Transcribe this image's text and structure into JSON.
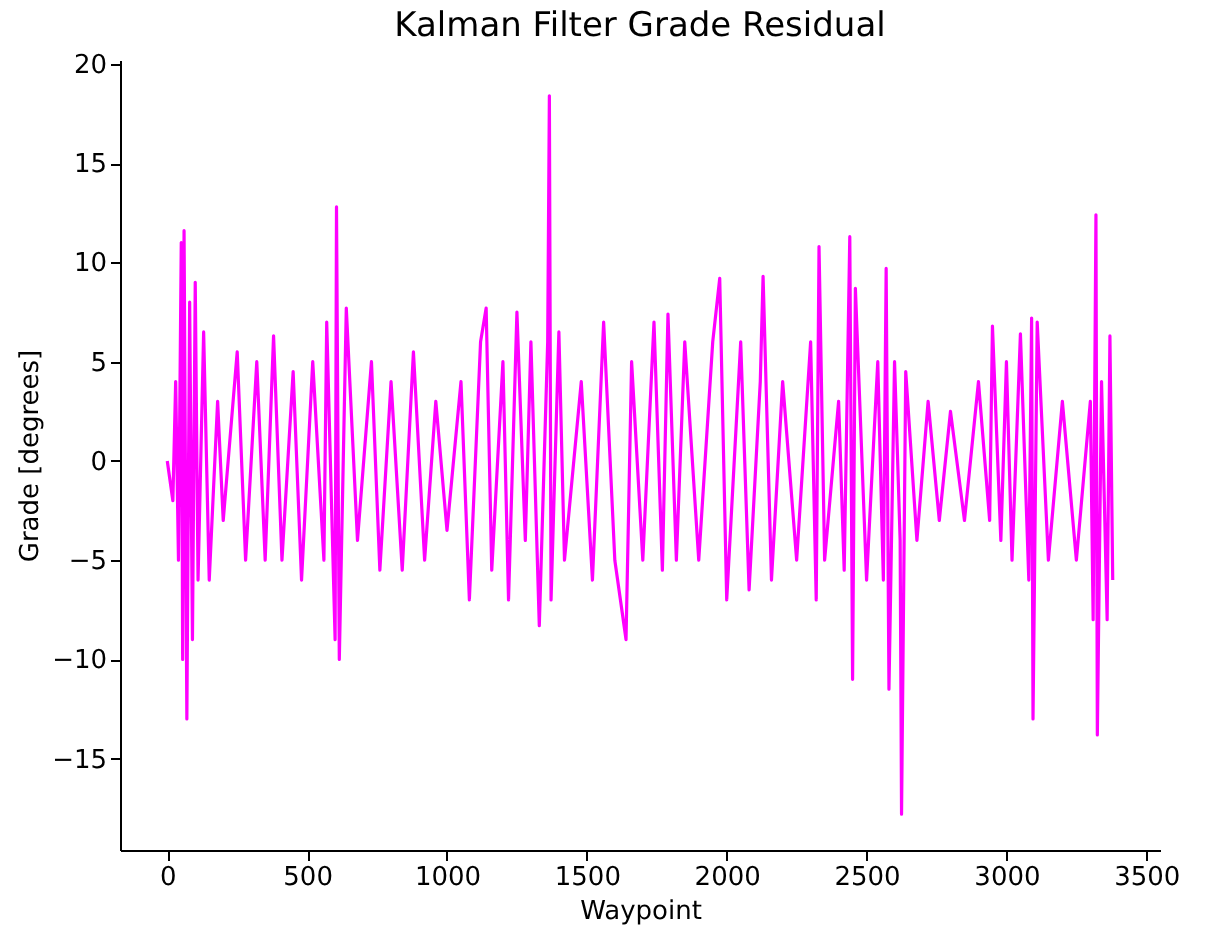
{
  "chart_data": {
    "type": "line",
    "title": "Kalman Filter Grade Residual",
    "xlabel": "Waypoint",
    "ylabel": "Grade [degrees]",
    "x": [
      0,
      20,
      30,
      40,
      50,
      55,
      60,
      70,
      80,
      90,
      100,
      110,
      130,
      150,
      180,
      200,
      250,
      280,
      320,
      350,
      380,
      410,
      450,
      480,
      520,
      560,
      570,
      600,
      605,
      615,
      640,
      680,
      730,
      760,
      800,
      840,
      880,
      920,
      960,
      1000,
      1050,
      1080,
      1120,
      1140,
      1160,
      1200,
      1220,
      1250,
      1280,
      1300,
      1330,
      1360,
      1366,
      1372,
      1400,
      1420,
      1480,
      1520,
      1560,
      1600,
      1640,
      1660,
      1700,
      1740,
      1770,
      1790,
      1820,
      1850,
      1900,
      1950,
      1975,
      2000,
      2050,
      2080,
      2120,
      2130,
      2160,
      2200,
      2250,
      2300,
      2320,
      2330,
      2350,
      2400,
      2420,
      2440,
      2450,
      2460,
      2500,
      2540,
      2560,
      2570,
      2580,
      2600,
      2620,
      2625,
      2640,
      2680,
      2720,
      2760,
      2800,
      2850,
      2900,
      2940,
      2950,
      2980,
      3000,
      3020,
      3050,
      3080,
      3090,
      3095,
      3110,
      3150,
      3200,
      3250,
      3300,
      3310,
      3320,
      3325,
      3340,
      3360,
      3370,
      3380
    ],
    "series": [
      {
        "color": "#ff00ff",
        "values": [
          0,
          -2,
          4,
          -5,
          11,
          -10,
          11.6,
          -13,
          8,
          -9,
          9,
          -6,
          6.5,
          -6,
          3,
          -3,
          5.5,
          -5,
          5,
          -5,
          6.3,
          -5,
          4.5,
          -6,
          5,
          -5,
          7,
          -9,
          12.8,
          -10,
          7.7,
          -4,
          5,
          -5.5,
          4,
          -5.5,
          5.5,
          -5,
          3,
          -3.5,
          4,
          -7,
          6,
          7.7,
          -5.5,
          5,
          -7,
          7.5,
          -4,
          6,
          -8.3,
          6,
          18.4,
          -7,
          6.5,
          -5,
          4,
          -6,
          7,
          -5,
          -9,
          5,
          -5,
          7,
          -5.5,
          7.4,
          -5,
          6,
          -5,
          6,
          9.2,
          -7,
          6,
          -6.5,
          4,
          9.3,
          -6,
          4,
          -5,
          6,
          -7,
          10.8,
          -5,
          3,
          -5.5,
          11.3,
          -11,
          8.7,
          -6,
          5,
          -6,
          9.7,
          -11.5,
          5,
          -4,
          -17.8,
          4.5,
          -4,
          3,
          -3,
          2.5,
          -3,
          4,
          -3,
          6.8,
          -4,
          5,
          -5,
          6.4,
          -6,
          7.2,
          -13,
          7,
          -5,
          3,
          -5,
          3,
          -8,
          12.4,
          -13.8,
          4,
          -8,
          6.3,
          -6
        ]
      }
    ],
    "xlim": [
      -169,
      3549
    ],
    "ylim": [
      -19.6,
      20.2
    ],
    "xticks": [
      0,
      500,
      1000,
      1500,
      2000,
      2500,
      3000,
      3500
    ],
    "yticks": [
      -15,
      -10,
      -5,
      0,
      5,
      10,
      15,
      20
    ],
    "grid": false,
    "line_style": "solid",
    "marker": "none"
  }
}
